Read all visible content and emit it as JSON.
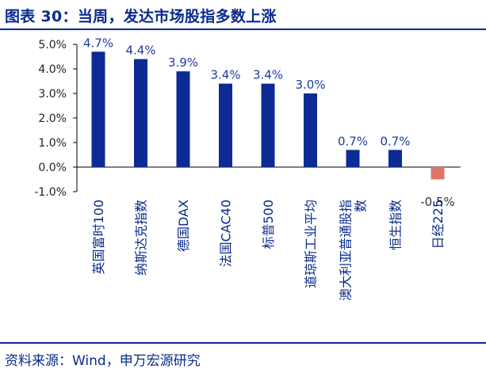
{
  "title": "图表 30：当周，发达市场股指多数上涨",
  "source": "资料来源：Wind，申万宏源研究",
  "colors": {
    "title": "#0a2a8c",
    "positive_bar": "#0d2a95",
    "negative_bar": "#e07468",
    "axis": "#000000",
    "label_positive": "#1f3a9e",
    "label_negative": "#333333"
  },
  "chart_data": {
    "type": "bar",
    "categories": [
      "英国富时100",
      "纳斯达克指数",
      "德国DAX",
      "法国CAC40",
      "标普500",
      "道琼斯工业平均",
      "澳大利亚普通股指数",
      "恒生指数",
      "日经225"
    ],
    "values": [
      4.7,
      4.4,
      3.9,
      3.4,
      3.4,
      3.0,
      0.7,
      0.7,
      -0.5
    ],
    "data_labels": [
      "4.7%",
      "4.4%",
      "3.9%",
      "3.4%",
      "3.4%",
      "3.0%",
      "0.7%",
      "0.7%",
      "-0.5%"
    ],
    "yticks": [
      "5.0%",
      "4.0%",
      "3.0%",
      "2.0%",
      "1.0%",
      "0.0%",
      "-1.0%"
    ],
    "ylim": [
      -1.0,
      5.0
    ],
    "grid": false,
    "legend": "none"
  }
}
